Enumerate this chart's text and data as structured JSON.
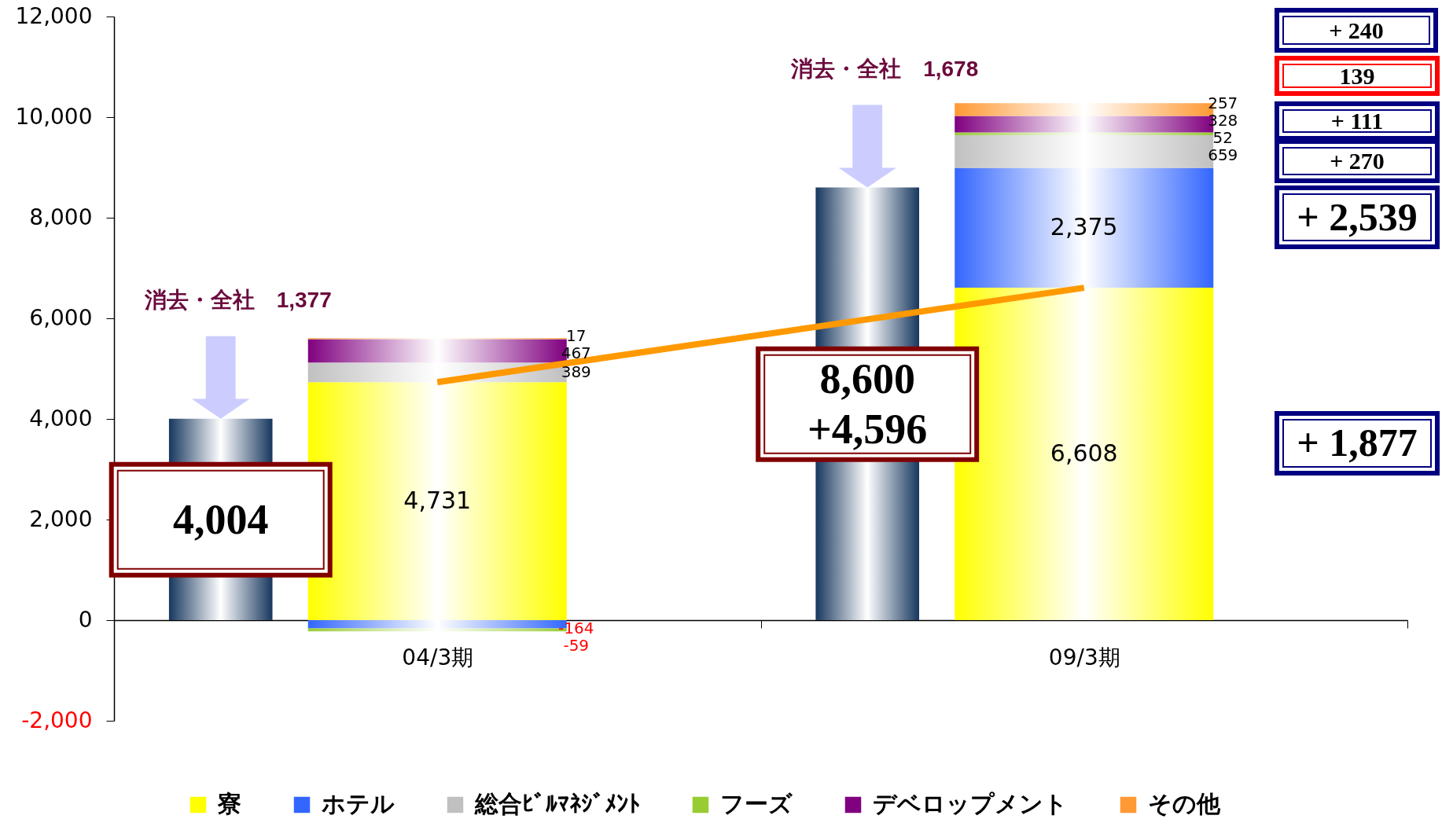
{
  "chart_data": {
    "type": "bar",
    "stacked": true,
    "categories": [
      null,
      "04/3期",
      null,
      "09/3期"
    ],
    "series": [
      {
        "color": "#17375e",
        "values": [
          4004,
          null,
          8600,
          null
        ],
        "value_labels": [
          "4,004",
          null,
          "8,600",
          null
        ]
      },
      {
        "name": "寮",
        "color": "#ffff00",
        "values": [
          null,
          4731,
          null,
          6608
        ],
        "value_labels": [
          null,
          "4,731",
          null,
          "6,608"
        ]
      },
      {
        "name": "ホテル",
        "color": "#3366ff",
        "values": [
          null,
          -164,
          null,
          2375
        ],
        "value_labels": [
          null,
          "-164",
          null,
          "2,375"
        ]
      },
      {
        "name": "総合ﾋﾞﾙﾏﾈｼﾞﾒﾝﾄ",
        "color": "#c0c0c0",
        "values": [
          null,
          389,
          null,
          659
        ],
        "value_labels": [
          null,
          "389",
          null,
          "659"
        ]
      },
      {
        "name": "フーズ",
        "color": "#99cc33",
        "values": [
          null,
          -59,
          null,
          52
        ],
        "value_labels": [
          null,
          "-59",
          null,
          "52"
        ]
      },
      {
        "name": "デベロップメント",
        "color": "#800080",
        "values": [
          null,
          467,
          null,
          328
        ],
        "value_labels": [
          null,
          "467",
          null,
          "328"
        ]
      },
      {
        "name": "その他",
        "color": "#ff9933",
        "values": [
          null,
          17,
          null,
          257
        ],
        "value_labels": [
          null,
          "17",
          null,
          "257"
        ]
      },
      {
        "type": "line",
        "color": "#ff9900",
        "values": [
          null,
          4731,
          null,
          6608
        ]
      }
    ],
    "ylim": [
      -2000,
      12000
    ],
    "yticks": [
      {
        "value": -2000,
        "label": "-2,000"
      },
      0,
      {
        "value": 2000,
        "label": "2,000"
      },
      {
        "value": 4000,
        "label": "4,000"
      },
      {
        "value": 6000,
        "label": "6,000"
      },
      {
        "value": 8000,
        "label": "8,000"
      },
      {
        "value": 10000,
        "label": "10,000"
      },
      {
        "value": 12000,
        "label": "12,000"
      }
    ],
    "annotations": [
      "消去・全社　1,377",
      "消去・全社　1,678",
      "+4,596",
      "+ 240",
      "139",
      "+ 111",
      "+ 270",
      "+ 2,539",
      "+ 1,877"
    ],
    "legend": "bottom"
  }
}
